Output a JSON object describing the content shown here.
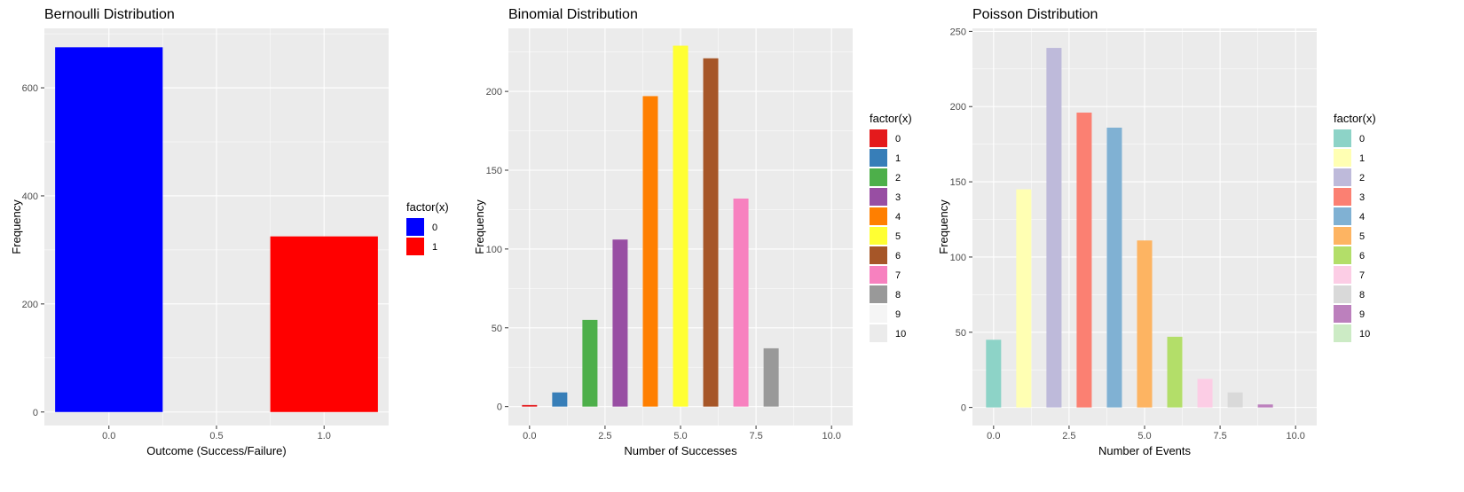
{
  "chart_data": [
    {
      "type": "bar",
      "title": "Bernoulli Distribution",
      "xlabel": "Outcome (Success/Failure)",
      "ylabel": "Frequency",
      "xlim": [
        -0.3,
        1.3
      ],
      "ylim": [
        -25,
        710
      ],
      "xticks": [
        0.0,
        0.5,
        1.0
      ],
      "xtick_labels": [
        "0.0",
        "0.5",
        "1.0"
      ],
      "yticks": [
        0,
        200,
        400,
        600
      ],
      "ytick_labels": [
        "0",
        "200",
        "400",
        "600"
      ],
      "bar_width": 0.5,
      "grid": true,
      "legend": {
        "title": "factor(x)",
        "position": "right"
      },
      "series": [
        {
          "name": "0",
          "x": 0,
          "value": 675,
          "color": "#0000FF"
        },
        {
          "name": "1",
          "x": 1,
          "value": 325,
          "color": "#FF0000"
        }
      ]
    },
    {
      "type": "bar",
      "title": "Binomial Distribution",
      "xlabel": "Number of Successes",
      "ylabel": "Frequency",
      "xlim": [
        -0.7,
        10.7
      ],
      "ylim": [
        -12,
        240
      ],
      "xticks": [
        0,
        2.5,
        5,
        7.5,
        10
      ],
      "xtick_labels": [
        "0.0",
        "2.5",
        "5.0",
        "7.5",
        "10.0"
      ],
      "yticks": [
        0,
        50,
        100,
        150,
        200
      ],
      "ytick_labels": [
        "0",
        "50",
        "100",
        "150",
        "200"
      ],
      "bar_width": 0.5,
      "grid": true,
      "legend": {
        "title": "factor(x)",
        "position": "right"
      },
      "series": [
        {
          "name": "0",
          "x": 0,
          "value": 1,
          "color": "#E41A1C"
        },
        {
          "name": "1",
          "x": 1,
          "value": 9,
          "color": "#377EB8"
        },
        {
          "name": "2",
          "x": 2,
          "value": 55,
          "color": "#4DAF4A"
        },
        {
          "name": "3",
          "x": 3,
          "value": 106,
          "color": "#984EA3"
        },
        {
          "name": "4",
          "x": 4,
          "value": 197,
          "color": "#FF7F00"
        },
        {
          "name": "5",
          "x": 5,
          "value": 229,
          "color": "#FFFF33"
        },
        {
          "name": "6",
          "x": 6,
          "value": 221,
          "color": "#A65628"
        },
        {
          "name": "7",
          "x": 7,
          "value": 132,
          "color": "#F781BF"
        },
        {
          "name": "8",
          "x": 8,
          "value": 37,
          "color": "#999999"
        },
        {
          "name": "9",
          "x": 9,
          "value": 0,
          "color": "#F5F5F5"
        },
        {
          "name": "10",
          "x": 10,
          "value": 0,
          "color": "#EBEBEB"
        }
      ]
    },
    {
      "type": "bar",
      "title": "Poisson Distribution",
      "xlabel": "Number of Events",
      "ylabel": "Frequency",
      "xlim": [
        -0.7,
        10.7
      ],
      "ylim": [
        -12,
        252
      ],
      "xticks": [
        0,
        2.5,
        5,
        7.5,
        10
      ],
      "xtick_labels": [
        "0.0",
        "2.5",
        "5.0",
        "7.5",
        "10.0"
      ],
      "yticks": [
        0,
        50,
        100,
        150,
        200,
        250
      ],
      "ytick_labels": [
        "0",
        "50",
        "100",
        "150",
        "200",
        "250"
      ],
      "bar_width": 0.5,
      "grid": true,
      "legend": {
        "title": "factor(x)",
        "position": "right"
      },
      "series": [
        {
          "name": "0",
          "x": 0,
          "value": 45,
          "color": "#8DD3C7"
        },
        {
          "name": "1",
          "x": 1,
          "value": 145,
          "color": "#FFFFB3"
        },
        {
          "name": "2",
          "x": 2,
          "value": 239,
          "color": "#BEBADA"
        },
        {
          "name": "3",
          "x": 3,
          "value": 196,
          "color": "#FB8072"
        },
        {
          "name": "4",
          "x": 4,
          "value": 186,
          "color": "#80B1D3"
        },
        {
          "name": "5",
          "x": 5,
          "value": 111,
          "color": "#FDB462"
        },
        {
          "name": "6",
          "x": 6,
          "value": 47,
          "color": "#B3DE69"
        },
        {
          "name": "7",
          "x": 7,
          "value": 19,
          "color": "#FCCDE5"
        },
        {
          "name": "8",
          "x": 8,
          "value": 10,
          "color": "#D9D9D9"
        },
        {
          "name": "9",
          "x": 9,
          "value": 2,
          "color": "#BC80BD"
        },
        {
          "name": "10",
          "x": 10,
          "value": 0,
          "color": "#CCEBC5"
        }
      ]
    }
  ]
}
